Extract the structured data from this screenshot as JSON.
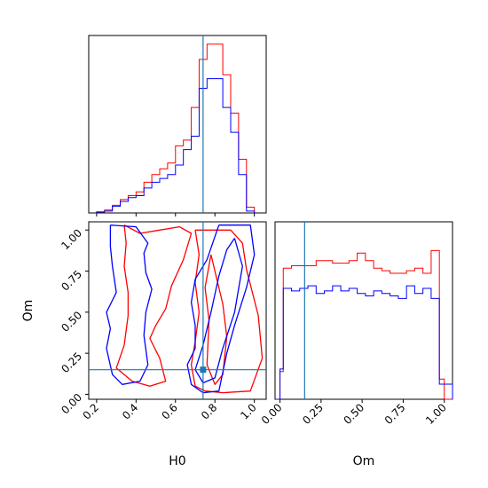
{
  "chart_data": {
    "type": "corner",
    "params": [
      "H0",
      "Om"
    ],
    "truth": {
      "H0": 0.74,
      "Om": 0.15
    },
    "colors": {
      "series_a": "#ff0000",
      "series_b": "#0000ff",
      "truth": "#1f77b4"
    },
    "axes": {
      "H0": {
        "xlim": [
          0.16,
          1.06
        ],
        "ticks": [
          0.2,
          0.4,
          0.6,
          0.8,
          1.0
        ],
        "tick_labels": [
          "0.2",
          "0.4",
          "0.6",
          "0.8",
          "1.0"
        ],
        "label": "H0"
      },
      "Om": {
        "xlim": [
          -0.03,
          1.05
        ],
        "ticks": [
          0.0,
          0.25,
          0.5,
          0.75,
          1.0
        ],
        "tick_labels": [
          "0.00",
          "0.25",
          "0.50",
          "0.75",
          "1.00"
        ],
        "label": "Om"
      }
    },
    "hist_H0": {
      "bin_edges": [
        0.2,
        0.24,
        0.28,
        0.32,
        0.36,
        0.4,
        0.44,
        0.48,
        0.52,
        0.56,
        0.6,
        0.64,
        0.68,
        0.72,
        0.76,
        0.8,
        0.84,
        0.88,
        0.92,
        0.96,
        1.0
      ],
      "series_a": [
        0.5,
        1.5,
        4,
        7,
        9,
        11,
        16,
        20,
        23,
        26,
        35,
        38,
        55,
        80,
        88,
        88,
        72,
        52,
        28,
        3
      ],
      "series_b": [
        0.5,
        1,
        3.5,
        6,
        8,
        9,
        13,
        16,
        18,
        20,
        25,
        33,
        40,
        65,
        70,
        70,
        55,
        42,
        20,
        1
      ]
    },
    "hist_Om": {
      "bin_edges": [
        -0.03,
        0.0,
        0.02,
        0.07,
        0.12,
        0.17,
        0.22,
        0.27,
        0.32,
        0.37,
        0.42,
        0.47,
        0.52,
        0.57,
        0.62,
        0.67,
        0.72,
        0.77,
        0.82,
        0.87,
        0.92,
        0.97,
        1.0,
        1.05
      ],
      "series_a": [
        0,
        1.1,
        5.2,
        5.3,
        5.3,
        5.3,
        5.5,
        5.5,
        5.4,
        5.4,
        5.5,
        5.8,
        5.5,
        5.2,
        5.1,
        5.0,
        5.0,
        5.1,
        5.2,
        5.0,
        5.9,
        0.8,
        0
      ],
      "series_b": [
        0,
        1.2,
        4.4,
        4.3,
        4.4,
        4.5,
        4.2,
        4.3,
        4.5,
        4.3,
        4.4,
        4.2,
        4.1,
        4.3,
        4.2,
        4.1,
        4.0,
        4.5,
        4.2,
        4.4,
        4.0,
        0.6,
        0.6
      ]
    },
    "contours": {
      "series_a": [
        {
          "level": "outer",
          "points": [
            [
              0.34,
              1.03
            ],
            [
              0.42,
              0.98
            ],
            [
              0.52,
              1.0
            ],
            [
              0.62,
              1.02
            ],
            [
              0.68,
              0.98
            ],
            [
              0.64,
              0.82
            ],
            [
              0.58,
              0.66
            ],
            [
              0.55,
              0.52
            ],
            [
              0.5,
              0.42
            ],
            [
              0.47,
              0.34
            ],
            [
              0.52,
              0.22
            ],
            [
              0.55,
              0.08
            ],
            [
              0.47,
              0.05
            ],
            [
              0.38,
              0.08
            ],
            [
              0.3,
              0.16
            ],
            [
              0.34,
              0.3
            ],
            [
              0.36,
              0.48
            ],
            [
              0.36,
              0.62
            ],
            [
              0.34,
              0.78
            ],
            [
              0.35,
              0.92
            ],
            [
              0.34,
              1.03
            ]
          ]
        },
        {
          "level": "inner",
          "points": [
            [
              0.7,
              1.0
            ],
            [
              0.88,
              1.0
            ],
            [
              0.94,
              0.92
            ],
            [
              0.96,
              0.76
            ],
            [
              1.02,
              0.48
            ],
            [
              1.04,
              0.22
            ],
            [
              0.98,
              0.02
            ],
            [
              0.84,
              0.01
            ],
            [
              0.75,
              0.02
            ],
            [
              0.7,
              0.05
            ],
            [
              0.68,
              0.18
            ],
            [
              0.7,
              0.32
            ],
            [
              0.72,
              0.5
            ],
            [
              0.7,
              0.68
            ],
            [
              0.72,
              0.85
            ],
            [
              0.7,
              1.0
            ]
          ]
        },
        {
          "level": "inner",
          "points": [
            [
              0.78,
              0.85
            ],
            [
              0.84,
              0.55
            ],
            [
              0.86,
              0.35
            ],
            [
              0.84,
              0.12
            ],
            [
              0.8,
              0.06
            ],
            [
              0.76,
              0.18
            ],
            [
              0.77,
              0.45
            ],
            [
              0.75,
              0.65
            ],
            [
              0.78,
              0.85
            ]
          ]
        }
      ],
      "series_b": [
        {
          "level": "outer",
          "points": [
            [
              0.27,
              1.03
            ],
            [
              0.4,
              1.02
            ],
            [
              0.46,
              0.92
            ],
            [
              0.44,
              0.86
            ],
            [
              0.45,
              0.74
            ],
            [
              0.48,
              0.64
            ],
            [
              0.45,
              0.5
            ],
            [
              0.44,
              0.36
            ],
            [
              0.46,
              0.18
            ],
            [
              0.42,
              0.08
            ],
            [
              0.33,
              0.06
            ],
            [
              0.28,
              0.12
            ],
            [
              0.25,
              0.28
            ],
            [
              0.27,
              0.4
            ],
            [
              0.25,
              0.5
            ],
            [
              0.3,
              0.62
            ],
            [
              0.28,
              0.78
            ],
            [
              0.27,
              0.9
            ],
            [
              0.27,
              1.03
            ]
          ]
        },
        {
          "level": "outer",
          "points": [
            [
              0.82,
              1.03
            ],
            [
              0.98,
              1.03
            ],
            [
              1.0,
              0.85
            ],
            [
              0.96,
              0.65
            ],
            [
              0.9,
              0.42
            ],
            [
              0.86,
              0.25
            ],
            [
              0.82,
              0.02
            ],
            [
              0.74,
              0.01
            ],
            [
              0.68,
              0.06
            ],
            [
              0.66,
              0.18
            ],
            [
              0.7,
              0.28
            ],
            [
              0.7,
              0.42
            ],
            [
              0.68,
              0.56
            ],
            [
              0.7,
              0.7
            ],
            [
              0.76,
              0.82
            ],
            [
              0.82,
              1.03
            ]
          ]
        },
        {
          "level": "inner",
          "points": [
            [
              0.9,
              0.95
            ],
            [
              0.94,
              0.78
            ],
            [
              0.9,
              0.5
            ],
            [
              0.84,
              0.28
            ],
            [
              0.8,
              0.1
            ],
            [
              0.74,
              0.07
            ],
            [
              0.7,
              0.15
            ],
            [
              0.74,
              0.3
            ],
            [
              0.78,
              0.5
            ],
            [
              0.82,
              0.72
            ],
            [
              0.86,
              0.88
            ],
            [
              0.9,
              0.95
            ]
          ]
        }
      ]
    }
  }
}
